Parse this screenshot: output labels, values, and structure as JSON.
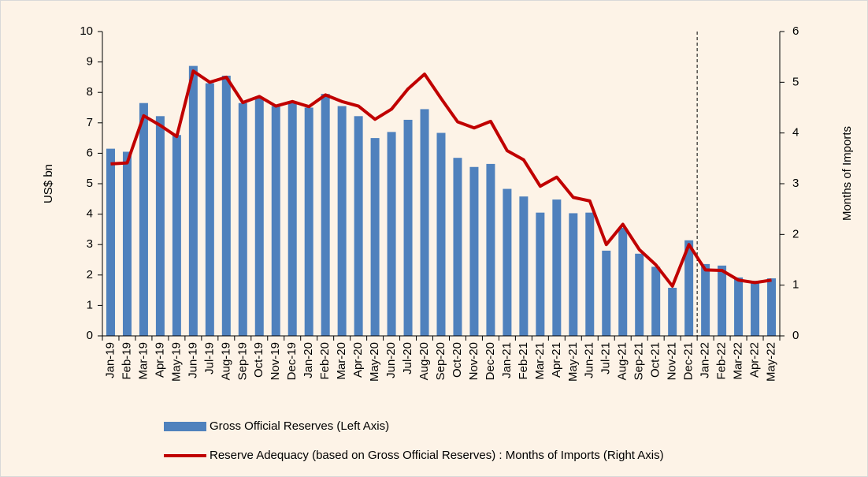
{
  "chart_data": {
    "type": "bar_line",
    "y_label": "US$ bn",
    "y2_label": "Months of Imports",
    "categories": [
      "Jan-19",
      "Feb-19",
      "Mar-19",
      "Apr-19",
      "May-19",
      "Jun-19",
      "Jul-19",
      "Aug-19",
      "Sep-19",
      "Oct-19",
      "Nov-19",
      "Dec-19",
      "Jan-20",
      "Feb-20",
      "Mar-20",
      "Apr-20",
      "May-20",
      "Jun-20",
      "Jul-20",
      "Aug-20",
      "Sep-20",
      "Oct-20",
      "Nov-20",
      "Dec-20",
      "Jan-21",
      "Feb-21",
      "Mar-21",
      "Apr-21",
      "May-21",
      "Jun-21",
      "Jul-21",
      "Aug-21",
      "Sep-21",
      "Oct-21",
      "Nov-21",
      "Dec-21",
      "Jan-22",
      "Feb-22",
      "Mar-22",
      "Apr-22",
      "May-22"
    ],
    "series": [
      {
        "name": "Gross Official Reserves (Left Axis)",
        "kind": "bar",
        "color": "#4f81bd",
        "values": [
          6.15,
          6.05,
          7.65,
          7.22,
          6.6,
          8.87,
          8.3,
          8.55,
          7.65,
          7.8,
          7.55,
          7.65,
          7.5,
          7.95,
          7.55,
          7.22,
          6.5,
          6.7,
          7.1,
          7.45,
          6.67,
          5.85,
          5.55,
          5.65,
          4.83,
          4.58,
          4.05,
          4.48,
          4.03,
          4.05,
          2.8,
          3.55,
          2.7,
          2.27,
          1.58,
          3.14,
          2.36,
          2.31,
          1.92,
          1.81,
          1.89
        ]
      },
      {
        "name": "Reserve Adequacy (based on Gross Official Reserves) : Months of Imports (Right Axis)",
        "kind": "line",
        "axis": "y2",
        "color": "#c00000",
        "values": [
          3.39,
          3.41,
          4.34,
          4.15,
          3.93,
          5.22,
          5.0,
          5.1,
          4.6,
          4.72,
          4.53,
          4.62,
          4.52,
          4.75,
          4.62,
          4.53,
          4.27,
          4.47,
          4.87,
          5.16,
          4.68,
          4.22,
          4.1,
          4.23,
          3.65,
          3.47,
          2.95,
          3.13,
          2.73,
          2.66,
          1.8,
          2.2,
          1.7,
          1.4,
          0.98,
          1.8,
          1.3,
          1.29,
          1.1,
          1.05,
          1.1
        ]
      }
    ],
    "ylim": [
      0,
      10
    ],
    "yticks": [
      0,
      1,
      2,
      3,
      4,
      5,
      6,
      7,
      8,
      9,
      10
    ],
    "y2lim": [
      0,
      6
    ],
    "y2ticks": [
      0,
      1,
      2,
      3,
      4,
      5,
      6
    ],
    "divider_after": "Dec-21",
    "background": "#fdf3e7"
  }
}
